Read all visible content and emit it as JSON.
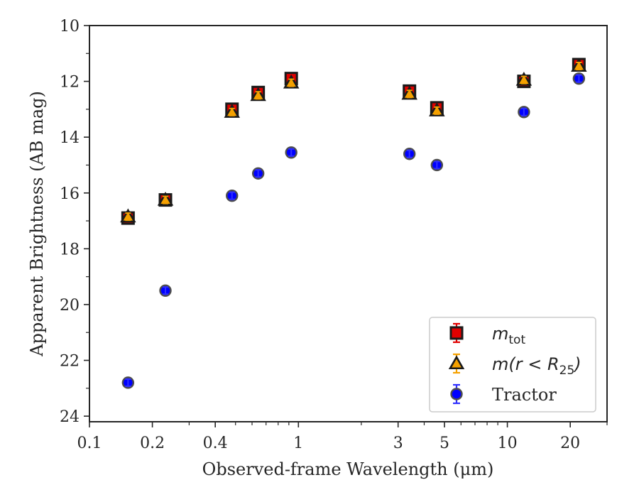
{
  "chart_data": {
    "type": "scatter",
    "title": "",
    "xlabel": "Observed-frame Wavelength (μm)",
    "ylabel": "Apparent Brightness (AB mag)",
    "xscale": "log",
    "xlim": [
      0.1,
      30
    ],
    "ylim": [
      24.2,
      10
    ],
    "y_inverted": true,
    "grid": false,
    "legend_position": "lower-right",
    "x_ticks": [
      {
        "value": 0.1,
        "label": "0.1"
      },
      {
        "value": 0.2,
        "label": "0.2"
      },
      {
        "value": 0.4,
        "label": "0.4"
      },
      {
        "value": 1,
        "label": "1"
      },
      {
        "value": 3,
        "label": "3"
      },
      {
        "value": 5,
        "label": "5"
      },
      {
        "value": 10,
        "label": "10"
      },
      {
        "value": 20,
        "label": "20"
      }
    ],
    "x_minor_ticks": [
      0.3,
      0.5,
      0.6,
      0.7,
      0.8,
      0.9,
      2,
      4,
      6,
      7,
      8,
      9,
      30
    ],
    "y_ticks": [
      10,
      12,
      14,
      16,
      18,
      20,
      22,
      24
    ],
    "y_minor_ticks": [
      11,
      13,
      15,
      17,
      19,
      21,
      23
    ],
    "series": [
      {
        "name": "m_tot",
        "legend_main": "m",
        "legend_sub": "tot",
        "marker": "square",
        "fill": "#e00000",
        "edge": "#1a1a1a",
        "errorbar_color": "#e00000",
        "x": [
          0.153,
          0.231,
          0.481,
          0.642,
          0.924,
          3.4,
          4.6,
          12.0,
          22.0
        ],
        "y": [
          16.9,
          16.25,
          13.0,
          12.4,
          11.9,
          12.35,
          12.95,
          12.0,
          11.4
        ]
      },
      {
        "name": "m(r < R25)",
        "legend_main": "m(r < R",
        "legend_sub": "25",
        "legend_tail": ")",
        "marker": "triangle",
        "fill": "#f5a100",
        "edge": "#1a1a1a",
        "errorbar_color": "#f5a100",
        "x": [
          0.153,
          0.231,
          0.481,
          0.642,
          0.924,
          3.4,
          4.6,
          12.0,
          22.0
        ],
        "y": [
          16.85,
          16.25,
          13.1,
          12.5,
          12.05,
          12.45,
          13.05,
          11.95,
          11.45
        ]
      },
      {
        "name": "Tractor",
        "legend_main": "Tractor",
        "marker": "circle",
        "fill": "#0000ff",
        "edge": "#4d4d4d",
        "errorbar_color": "#3030ff",
        "x": [
          0.153,
          0.231,
          0.481,
          0.642,
          0.924,
          3.4,
          4.6,
          12.0,
          22.0
        ],
        "y": [
          22.8,
          19.5,
          16.1,
          15.3,
          14.55,
          14.6,
          15.0,
          13.1,
          11.9
        ]
      }
    ]
  }
}
